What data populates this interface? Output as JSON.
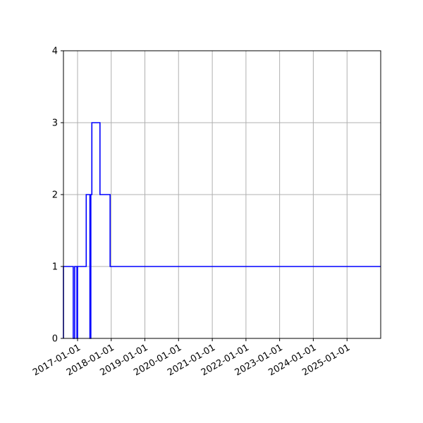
{
  "chart_data": {
    "type": "line",
    "drawstyle": "steps-post",
    "title": "",
    "xlabel": "",
    "ylabel": "",
    "x_axis": {
      "scale": "date",
      "range": [
        "2016-08-01",
        "2026-01-01"
      ],
      "ticks": [
        "2017-01-01",
        "2018-01-01",
        "2019-01-01",
        "2020-01-01",
        "2021-01-01",
        "2022-01-01",
        "2023-01-01",
        "2024-01-01",
        "2025-01-01"
      ],
      "tick_label_rotation": 30
    },
    "y_axis": {
      "range": [
        0,
        4
      ],
      "ticks": [
        "0",
        "1",
        "2",
        "3",
        "4"
      ]
    },
    "grid": true,
    "series": [
      {
        "color": "#0000ff",
        "points": [
          {
            "x": "2016-08-01",
            "y": 0
          },
          {
            "x": "2016-08-01",
            "y": 1
          },
          {
            "x": "2016-08-15",
            "y": 1
          },
          {
            "x": "2016-11-15",
            "y": 0
          },
          {
            "x": "2016-12-01",
            "y": 1
          },
          {
            "x": "2016-12-25",
            "y": 0
          },
          {
            "x": "2017-01-01",
            "y": 1
          },
          {
            "x": "2017-02-25",
            "y": 1
          },
          {
            "x": "2017-04-05",
            "y": 2
          },
          {
            "x": "2017-05-15",
            "y": 0
          },
          {
            "x": "2017-05-25",
            "y": 2
          },
          {
            "x": "2017-06-05",
            "y": 3
          },
          {
            "x": "2017-09-01",
            "y": 2
          },
          {
            "x": "2017-12-20",
            "y": 1
          },
          {
            "x": "2026-01-01",
            "y": 1
          }
        ]
      }
    ]
  }
}
